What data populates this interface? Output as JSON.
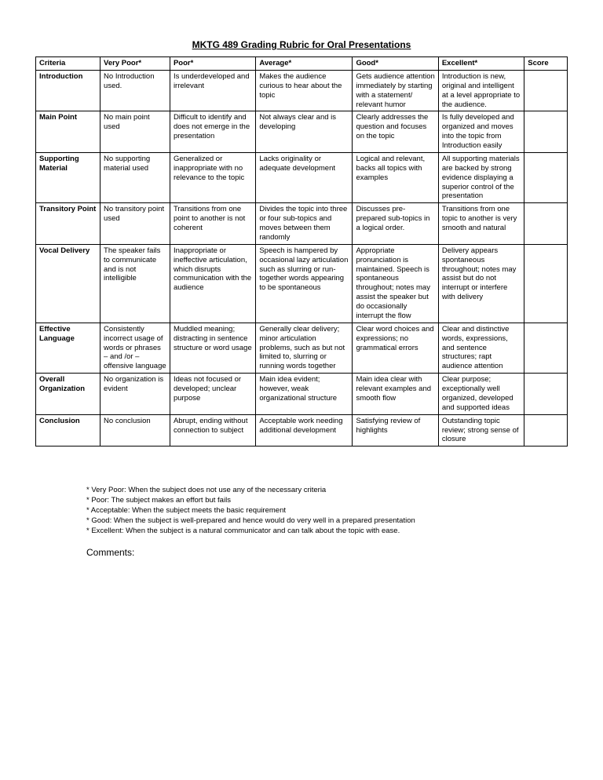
{
  "title": "MKTG 489 Grading Rubric for Oral Presentations",
  "columns": [
    "Criteria",
    "Very Poor*",
    "Poor*",
    "Average*",
    "Good*",
    "Excellent*",
    "Score"
  ],
  "rows": [
    {
      "criteria": "Introduction",
      "vp": "No Introduction used.",
      "poor": "Is underdeveloped and irrelevant",
      "avg": "Makes the audience curious to hear about the topic",
      "good": "Gets audience attention immediately by starting with a statement/ relevant humor",
      "exc": "Introduction is new, original and intelligent at a level appropriate to the audience.",
      "score": ""
    },
    {
      "criteria": "Main Point",
      "vp": "No main point used",
      "poor": "Difficult to identify and does not emerge in the presentation",
      "avg": "Not always clear and is developing",
      "good": "Clearly addresses the question and focuses on the topic",
      "exc": "Is fully developed and organized and moves into the topic from Introduction easily",
      "score": ""
    },
    {
      "criteria": "Supporting Material",
      "vp": "No supporting material used",
      "poor": "Generalized or inappropriate with no relevance to the topic",
      "avg": "Lacks originality or adequate development",
      "good": "Logical and relevant, backs all topics with examples",
      "exc": "All supporting materials are backed by strong evidence displaying a superior control of the presentation",
      "score": ""
    },
    {
      "criteria": "Transitory Point",
      "vp": "No transitory point used",
      "poor": "Transitions from one point to another is not  coherent",
      "avg": "Divides the topic into three or four sub-topics and moves between them randomly",
      "good": "Discusses pre-prepared sub-topics in a logical order.",
      "exc": "Transitions from one topic to another is very smooth and natural",
      "score": ""
    },
    {
      "criteria": "Vocal Delivery",
      "vp": "The speaker fails to communicate and is not intelligible",
      "poor": "Inappropriate or ineffective articulation, which disrupts communication with the audience",
      "avg": "Speech is hampered by occasional lazy articulation such as slurring or run-together words appearing to be spontaneous",
      "good": "Appropriate pronunciation is maintained. Speech is spontaneous throughout; notes may assist the speaker but do occasionally interrupt the flow",
      "exc": "Delivery appears spontaneous throughout; notes may assist but do not interrupt or interfere with delivery",
      "score": ""
    },
    {
      "criteria": "Effective Language",
      "vp": "Consistently incorrect usage of words or phrases – and /or – offensive language",
      "poor": "Muddled meaning; distracting in sentence structure or word usage",
      "avg": "Generally clear delivery; minor articulation problems, such as but not limited to, slurring or running words together",
      "good": "Clear word choices and expressions; no grammatical errors",
      "exc": "Clear and distinctive words, expressions, and sentence structures; rapt audience attention",
      "score": ""
    },
    {
      "criteria": "Overall Organization",
      "vp": "No organization is evident",
      "poor": "Ideas not focused or developed; unclear purpose",
      "avg": "Main idea evident; however, weak organizational structure",
      "good": "Main idea clear with relevant examples and smooth flow",
      "exc": "Clear purpose; exceptionally well organized, developed and supported ideas",
      "score": ""
    },
    {
      "criteria": "Conclusion",
      "vp": "No conclusion",
      "poor": "Abrupt, ending without connection to subject",
      "avg": "Acceptable work needing additional development",
      "good": "Satisfying review of highlights",
      "exc": "Outstanding topic review; strong sense of closure",
      "score": ""
    }
  ],
  "legend": [
    "* Very Poor: When the subject does not use any of the necessary criteria",
    "* Poor: The subject makes an effort but fails",
    "* Acceptable: When the subject meets the basic requirement",
    "* Good: When the subject is well-prepared and hence would do very well in a prepared presentation",
    "* Excellent: When the subject is a natural communicator and can talk about the topic with ease."
  ],
  "comments_label": "Comments:"
}
